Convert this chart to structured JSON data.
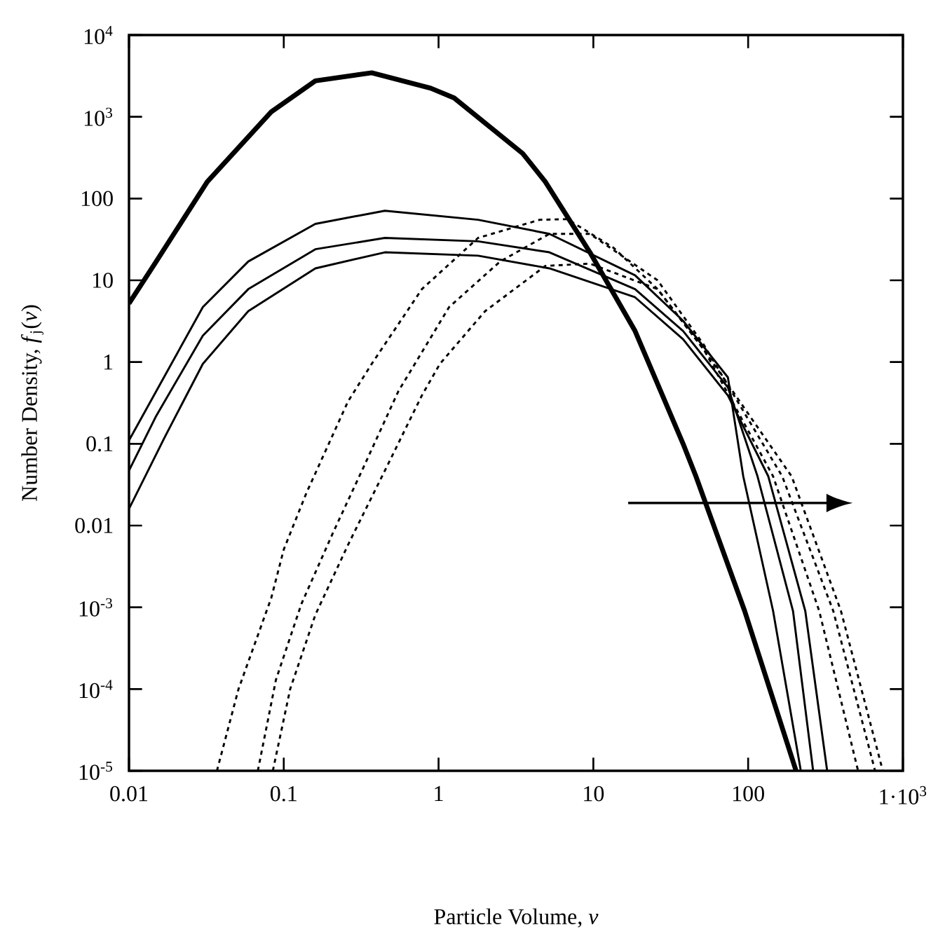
{
  "chart_data": {
    "type": "line",
    "xlabel": "Particle Volume, *v*",
    "ylabel": "Number Density, *f*$_{j}$(*v*)",
    "log": "xy",
    "xlim": [
      0.01,
      1000
    ],
    "ylim": [
      1e-05,
      10000
    ],
    "xticks": [
      0.01,
      0.1,
      1,
      10,
      100,
      {
        "value": 1000,
        "label": "1·10$^{3}$"
      }
    ],
    "yticks": [
      {
        "value": 1e-05,
        "label": "10$^{-5}$"
      },
      {
        "value": 0.0001,
        "label": "10$^{-4}$"
      },
      {
        "value": 0.001,
        "label": "10$^{-3}$"
      },
      0.01,
      0.1,
      1,
      10,
      100,
      {
        "value": 1000,
        "label": "10$^{3}$"
      },
      {
        "value": 10000,
        "label": "10$^{4}$"
      }
    ],
    "series": [
      {
        "color": "#000000",
        "line_style": "solid",
        "x": [
          0.01,
          0.015,
          0.032,
          0.083,
          0.16,
          0.37,
          0.89,
          1.26,
          3.5,
          4.9,
          9.5,
          18.6,
          38,
          46,
          95,
          204
        ],
        "values": [
          5.2,
          17,
          160,
          1150,
          2750,
          3450,
          2240,
          1700,
          355,
          160,
          22,
          2.4,
          0.1,
          0.04,
          0.0009,
          1e-05
        ]
      },
      {
        "color": "#000000",
        "line_style": "solid",
        "x": [
          0.01,
          0.015,
          0.03,
          0.059,
          0.16,
          0.45,
          1.8,
          5.2,
          18.6,
          38,
          74,
          93,
          145,
          219
        ],
        "values": [
          0.11,
          0.44,
          4.7,
          17,
          49,
          71,
          55,
          37,
          11.5,
          3.2,
          0.65,
          0.04,
          0.0009,
          1e-05
        ]
      },
      {
        "color": "#000000",
        "line_style": "solid",
        "x": [
          0.01,
          0.015,
          0.03,
          0.059,
          0.16,
          0.45,
          1.8,
          5.2,
          18.6,
          38,
          74,
          115,
          195,
          263
        ],
        "values": [
          0.047,
          0.22,
          2.1,
          7.8,
          24,
          33,
          30,
          22,
          7.8,
          2.4,
          0.49,
          0.04,
          0.0009,
          1e-05
        ]
      },
      {
        "color": "#000000",
        "line_style": "solid",
        "x": [
          0.01,
          0.017,
          0.03,
          0.059,
          0.16,
          0.45,
          1.8,
          5.2,
          18.6,
          38,
          74,
          135,
          234,
          324
        ],
        "values": [
          0.016,
          0.12,
          0.95,
          4.2,
          14,
          22,
          20,
          14,
          6.2,
          1.9,
          0.39,
          0.04,
          0.0009,
          1e-05
        ]
      },
      {
        "color": "#000000",
        "line_style": "dotted",
        "x": [
          0.037,
          0.051,
          0.083,
          0.1,
          0.14,
          0.26,
          0.37,
          0.78,
          1.8,
          4.5,
          6.8,
          13.5,
          26,
          52,
          145,
          288,
          513
        ],
        "values": [
          1e-05,
          0.0001,
          0.0013,
          0.0051,
          0.025,
          0.33,
          0.95,
          7.8,
          33,
          55,
          56,
          25,
          7.8,
          1.4,
          0.04,
          0.0009,
          1e-05
        ]
      },
      {
        "color": "#000000",
        "line_style": "dotted",
        "x": [
          0.068,
          0.089,
          0.13,
          0.21,
          0.32,
          0.55,
          1.17,
          2.5,
          5.2,
          9.5,
          26,
          52,
          166,
          355,
          661
        ],
        "values": [
          1e-05,
          0.00013,
          0.0011,
          0.0085,
          0.047,
          0.44,
          4.7,
          17,
          37,
          37,
          10,
          1.6,
          0.04,
          0.0009,
          1e-05
        ]
      },
      {
        "color": "#000000",
        "line_style": "dotted",
        "x": [
          0.085,
          0.11,
          0.16,
          0.26,
          0.45,
          0.78,
          1.02,
          2.0,
          4.9,
          9.5,
          26,
          52,
          191,
          398,
          741
        ],
        "values": [
          1e-05,
          0.0001,
          0.00081,
          0.0058,
          0.047,
          0.39,
          0.95,
          4.2,
          15,
          16,
          7.8,
          1.4,
          0.04,
          0.0009,
          1e-05
        ]
      }
    ]
  }
}
